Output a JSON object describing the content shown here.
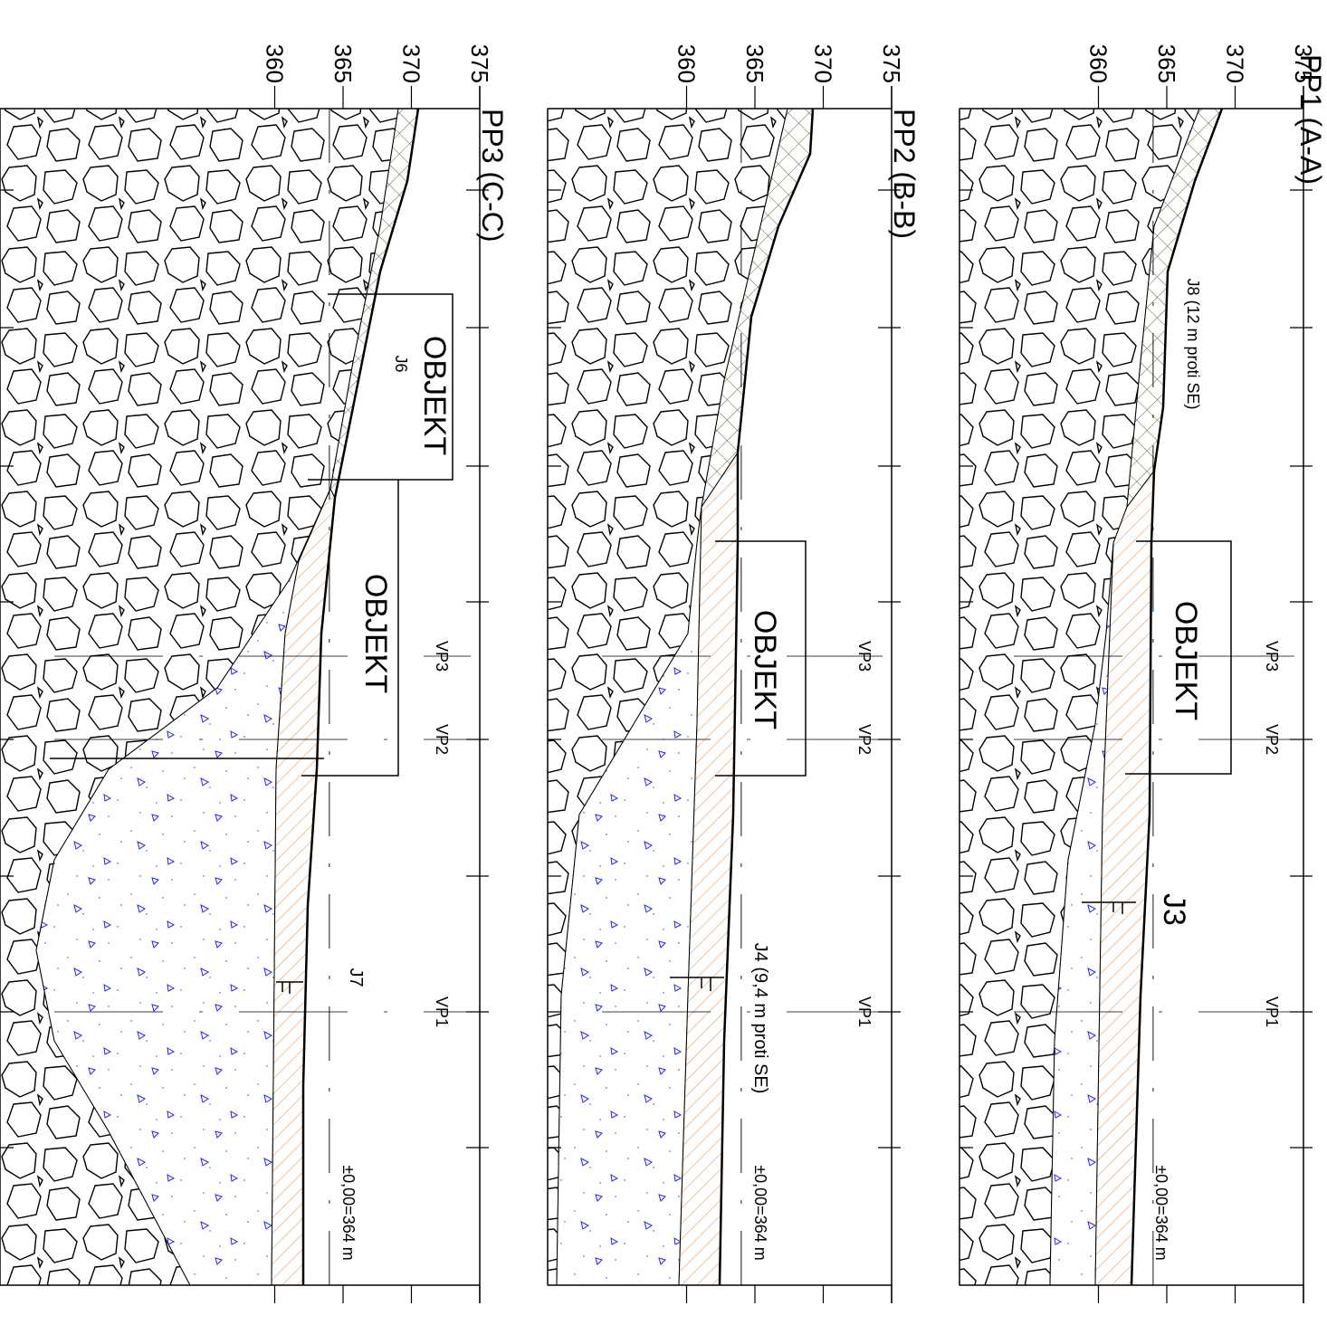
{
  "panels": [
    {
      "title": "PP1 (A-A)",
      "ticks": [
        375,
        370,
        365,
        360
      ],
      "labels": [
        "OBJEKT",
        "VP3",
        "VP2",
        "VP1",
        "±0,00=364 m",
        "J8 (12 m proti SE)",
        "J3"
      ]
    },
    {
      "title": "PP2 (B-B)",
      "ticks": [
        375,
        370,
        365,
        360
      ],
      "labels": [
        "OBJEKT",
        "VP3",
        "VP2",
        "VP1",
        "±0,00=364 m",
        "J4 (9,4 m proti SE)"
      ]
    },
    {
      "title": "PP3 (C-C)",
      "ticks": [
        375,
        370,
        365,
        360
      ],
      "labels": [
        "OBJEKT",
        "J6",
        "OBJEKT",
        "VP3",
        "VP2",
        "VP1",
        "J7",
        "±0,00=364 m"
      ]
    }
  ]
}
